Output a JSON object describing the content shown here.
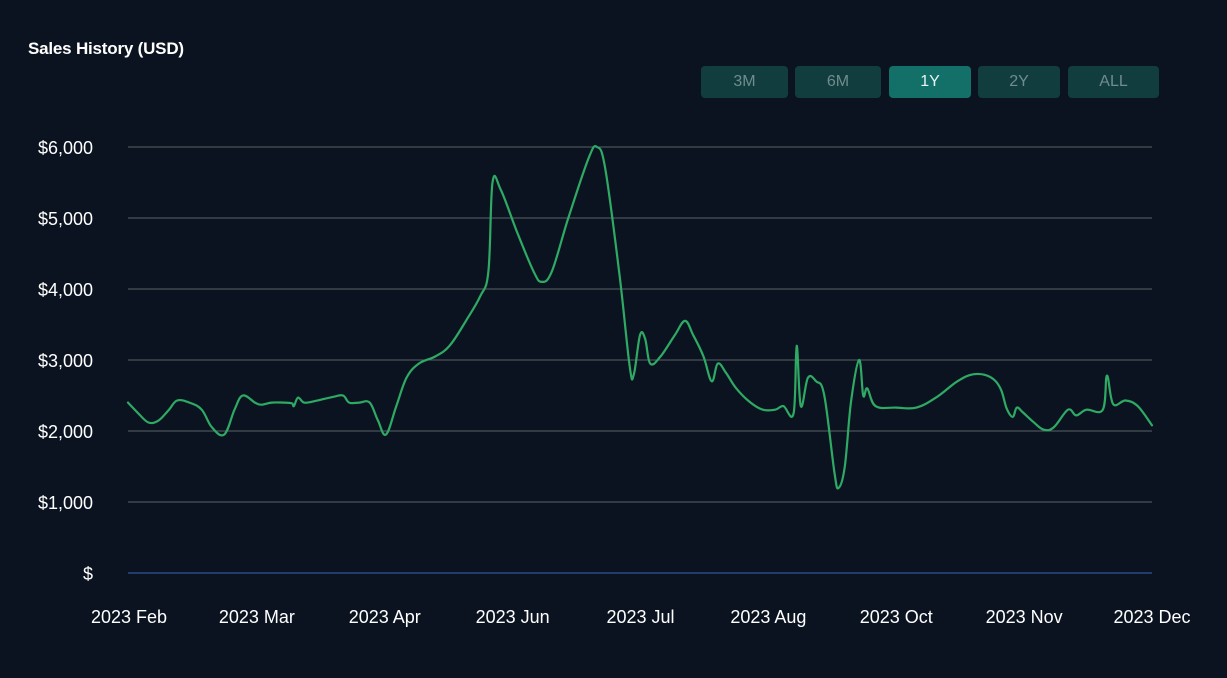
{
  "title": "Sales History (USD)",
  "range_buttons": [
    {
      "label": "3M",
      "active": false
    },
    {
      "label": "6M",
      "active": false
    },
    {
      "label": "1Y",
      "active": true
    },
    {
      "label": "2Y",
      "active": false
    },
    {
      "label": "ALL",
      "active": false
    }
  ],
  "colors": {
    "background": "#0b1320",
    "line": "#2eaa64",
    "grid": "#5a6068",
    "baseline": "#2a4a8a",
    "button": "#123d3f",
    "button_active": "#137068"
  },
  "chart_data": {
    "type": "line",
    "title": "Sales History (USD)",
    "xlabel": "",
    "ylabel": "",
    "ylim": [
      0,
      6000
    ],
    "y_ticks": [
      {
        "value": 6000,
        "label": "$6,000"
      },
      {
        "value": 5000,
        "label": "$5,000"
      },
      {
        "value": 4000,
        "label": "$4,000"
      },
      {
        "value": 3000,
        "label": "$3,000"
      },
      {
        "value": 2000,
        "label": "$2,000"
      },
      {
        "value": 1000,
        "label": "$1,000"
      },
      {
        "value": 0,
        "label": "$"
      }
    ],
    "x_tick_labels": [
      "2023 Feb",
      "2023 Mar",
      "2023 Apr",
      "2023 Jun",
      "2023 Jul",
      "2023 Aug",
      "2023 Oct",
      "2023 Nov",
      "2023 Dec"
    ],
    "grid": true,
    "series": [
      {
        "points": [
          [
            0.0,
            2400
          ],
          [
            0.01,
            2250
          ],
          [
            0.02,
            2120
          ],
          [
            0.03,
            2150
          ],
          [
            0.04,
            2300
          ],
          [
            0.048,
            2430
          ],
          [
            0.06,
            2400
          ],
          [
            0.072,
            2300
          ],
          [
            0.082,
            2050
          ],
          [
            0.094,
            1950
          ],
          [
            0.104,
            2300
          ],
          [
            0.112,
            2500
          ],
          [
            0.124,
            2400
          ],
          [
            0.13,
            2370
          ],
          [
            0.14,
            2400
          ],
          [
            0.152,
            2400
          ],
          [
            0.16,
            2390
          ],
          [
            0.162,
            2350
          ],
          [
            0.166,
            2470
          ],
          [
            0.172,
            2400
          ],
          [
            0.182,
            2420
          ],
          [
            0.2,
            2480
          ],
          [
            0.21,
            2500
          ],
          [
            0.216,
            2400
          ],
          [
            0.226,
            2400
          ],
          [
            0.236,
            2400
          ],
          [
            0.244,
            2150
          ],
          [
            0.252,
            1950
          ],
          [
            0.262,
            2350
          ],
          [
            0.272,
            2750
          ],
          [
            0.284,
            2950
          ],
          [
            0.3,
            3050
          ],
          [
            0.314,
            3200
          ],
          [
            0.33,
            3550
          ],
          [
            0.344,
            3900
          ],
          [
            0.352,
            4250
          ],
          [
            0.356,
            5500
          ],
          [
            0.364,
            5400
          ],
          [
            0.38,
            4800
          ],
          [
            0.396,
            4250
          ],
          [
            0.404,
            4100
          ],
          [
            0.414,
            4250
          ],
          [
            0.43,
            5000
          ],
          [
            0.45,
            5850
          ],
          [
            0.458,
            6000
          ],
          [
            0.466,
            5700
          ],
          [
            0.48,
            4200
          ],
          [
            0.49,
            2900
          ],
          [
            0.494,
            2800
          ],
          [
            0.5,
            3350
          ],
          [
            0.505,
            3300
          ],
          [
            0.51,
            2950
          ],
          [
            0.52,
            3050
          ],
          [
            0.534,
            3350
          ],
          [
            0.544,
            3550
          ],
          [
            0.552,
            3350
          ],
          [
            0.562,
            3050
          ],
          [
            0.57,
            2700
          ],
          [
            0.576,
            2950
          ],
          [
            0.584,
            2820
          ],
          [
            0.594,
            2600
          ],
          [
            0.608,
            2400
          ],
          [
            0.62,
            2300
          ],
          [
            0.632,
            2300
          ],
          [
            0.64,
            2350
          ],
          [
            0.65,
            2250
          ],
          [
            0.653,
            3200
          ],
          [
            0.657,
            2350
          ],
          [
            0.664,
            2750
          ],
          [
            0.672,
            2700
          ],
          [
            0.68,
            2500
          ],
          [
            0.69,
            1400
          ],
          [
            0.694,
            1200
          ],
          [
            0.7,
            1500
          ],
          [
            0.706,
            2400
          ],
          [
            0.714,
            3000
          ],
          [
            0.718,
            2500
          ],
          [
            0.722,
            2600
          ],
          [
            0.73,
            2350
          ],
          [
            0.75,
            2330
          ],
          [
            0.77,
            2330
          ],
          [
            0.79,
            2480
          ],
          [
            0.81,
            2700
          ],
          [
            0.826,
            2800
          ],
          [
            0.842,
            2760
          ],
          [
            0.852,
            2600
          ],
          [
            0.858,
            2320
          ],
          [
            0.864,
            2200
          ],
          [
            0.868,
            2330
          ],
          [
            0.874,
            2260
          ],
          [
            0.884,
            2130
          ],
          [
            0.894,
            2020
          ],
          [
            0.904,
            2050
          ],
          [
            0.918,
            2300
          ],
          [
            0.926,
            2220
          ],
          [
            0.936,
            2300
          ],
          [
            0.952,
            2300
          ],
          [
            0.956,
            2780
          ],
          [
            0.962,
            2380
          ],
          [
            0.974,
            2430
          ],
          [
            0.986,
            2350
          ],
          [
            1.0,
            2080
          ]
        ]
      }
    ]
  }
}
